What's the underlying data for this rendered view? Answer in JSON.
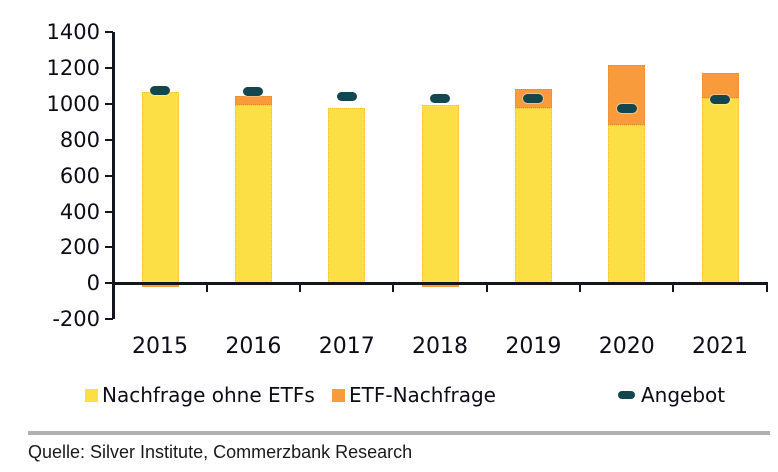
{
  "chart_data": {
    "type": "bar",
    "stacked": true,
    "title": "",
    "xlabel": "",
    "ylabel": "",
    "categories": [
      "2015",
      "2016",
      "2017",
      "2018",
      "2019",
      "2020",
      "2021"
    ],
    "series": [
      {
        "name": "Nachfrage ohne ETFs",
        "type": "bar",
        "color": "#FCDF44",
        "values": [
          1065,
          995,
          975,
          995,
          975,
          885,
          1035
        ]
      },
      {
        "name": "ETF-Nachfrage",
        "type": "bar",
        "color": "#F89B3C",
        "values": [
          -20,
          50,
          0,
          -20,
          110,
          330,
          135
        ]
      },
      {
        "name": "Angebot",
        "type": "dash-marker",
        "color": "#124750",
        "values": [
          1075,
          1070,
          1040,
          1030,
          1030,
          975,
          1025
        ]
      }
    ],
    "ylim": [
      -200,
      1400
    ],
    "yticks": [
      1400,
      1200,
      1000,
      800,
      600,
      400,
      200,
      0,
      -200
    ],
    "grid": false,
    "legend_position": "bottom"
  },
  "source": {
    "text": "Quelle: Silver Institute, Commerzbank Research"
  },
  "colors": {
    "axis": "#15151e",
    "tick_label": "#0d0d17",
    "divider": "#b0b0b0",
    "background": "#ffffff"
  }
}
